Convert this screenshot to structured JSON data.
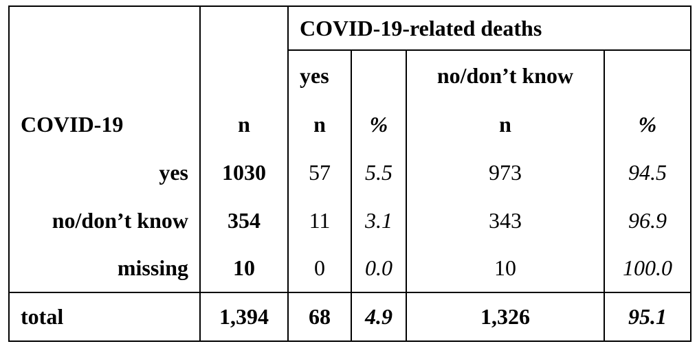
{
  "header": {
    "title": "COVID-19-related deaths",
    "subheaders": [
      "yes",
      "no/don’t know"
    ]
  },
  "table": {
    "columns": [
      "COVID-19",
      "n",
      "n",
      "%",
      "n",
      "%"
    ],
    "rows": [
      [
        "yes",
        "1030",
        "57",
        "5.5",
        "973",
        "94.5"
      ],
      [
        "no/don’t know",
        "354",
        "11",
        "3.1",
        "343",
        "96.9"
      ],
      [
        "missing",
        "10",
        "0",
        "0.0",
        "10",
        "100.0"
      ],
      [
        "total",
        "1,394",
        "68",
        "4.9",
        "1,326",
        "95.1"
      ]
    ]
  }
}
